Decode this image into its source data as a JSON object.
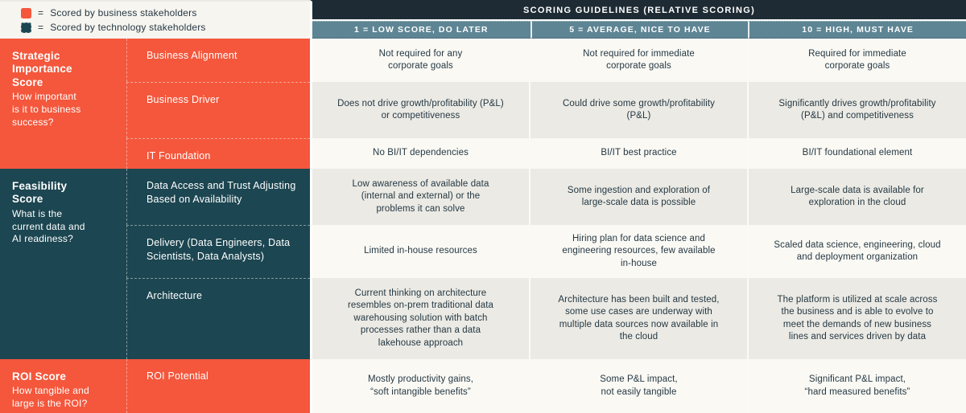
{
  "colors": {
    "business_accent": "#F4573C",
    "technology_accent": "#1C4651",
    "header_bar": "#1E2B34",
    "column_header": "#5E8594",
    "row_cream": "#FAF9F4",
    "row_gray": "#EBEAE4",
    "text_dark": "#253843"
  },
  "legend": {
    "items": [
      {
        "eq": "=",
        "label": "Scored by business stakeholders",
        "swatch_color": "#F4573C"
      },
      {
        "eq": "=",
        "label": "Scored by technology stakeholders",
        "swatch_color": "#1C4651"
      }
    ]
  },
  "header": {
    "title": "SCORING GUIDELINES (RELATIVE SCORING)",
    "columns": [
      "1 = LOW SCORE, DO LATER",
      "5 = AVERAGE, NICE TO HAVE",
      "10 = HIGH, MUST HAVE"
    ]
  },
  "groups": [
    {
      "title": "Strategic\nImportance\nScore",
      "question": "How important\nis it to business\nsuccess?",
      "scored_by": "business"
    },
    {
      "title": "Feasibility\nScore",
      "question": "What is the\ncurrent data and\nAI readiness?",
      "scored_by": "technology"
    },
    {
      "title": "ROI Score",
      "question": "How tangible and\nlarge is the ROI?",
      "scored_by": "business"
    }
  ],
  "rows": [
    {
      "label": "Business Alignment",
      "group": "Strategic Importance Score",
      "cells": [
        "Not required for any\ncorporate goals",
        "Not required for immediate\ncorporate goals",
        "Required for immediate\ncorporate goals"
      ]
    },
    {
      "label": "Business Driver",
      "group": "Strategic Importance Score",
      "cells": [
        "Does not drive growth/profitability (P&L)\nor competitiveness",
        "Could drive some growth/profitability\n(P&L)",
        "Significantly drives growth/profitability\n(P&L) and competitiveness"
      ]
    },
    {
      "label": "IT Foundation",
      "group": "Strategic Importance Score",
      "cells": [
        "No BI/IT dependencies",
        "BI/IT best practice",
        "BI/IT foundational element"
      ]
    },
    {
      "label": "Data Access and Trust Adjusting\nBased on Availability",
      "group": "Feasibility Score",
      "cells": [
        "Low awareness of available data\n(internal and external) or the\nproblems it can solve",
        "Some ingestion and exploration of\nlarge-scale data is possible",
        "Large-scale data is available for\nexploration in the cloud"
      ]
    },
    {
      "label": "Delivery (Data Engineers, Data\nScientists, Data Analysts)",
      "group": "Feasibility Score",
      "cells": [
        "Limited in-house resources",
        "Hiring plan for data science and\nengineering resources, few available\nin-house",
        "Scaled data science, engineering, cloud\nand deployment organization"
      ]
    },
    {
      "label": "Architecture",
      "group": "Feasibility Score",
      "cells": [
        "Current thinking on architecture\nresembles on-prem traditional data\nwarehousing solution with batch\nprocesses rather than a data\nlakehouse approach",
        "Architecture has been built and tested,\nsome use cases are underway with\nmultiple data sources now available in\nthe cloud",
        "The platform is utilized at scale across\nthe business and is able to evolve to\nmeet the demands of new business\nlines and services driven by data"
      ]
    },
    {
      "label": "ROI Potential",
      "group": "ROI Score",
      "cells": [
        "Mostly productivity gains,\n“soft intangible benefits”",
        "Some P&L impact,\nnot easily tangible",
        "Significant P&L impact,\n“hard measured benefits”"
      ]
    }
  ]
}
